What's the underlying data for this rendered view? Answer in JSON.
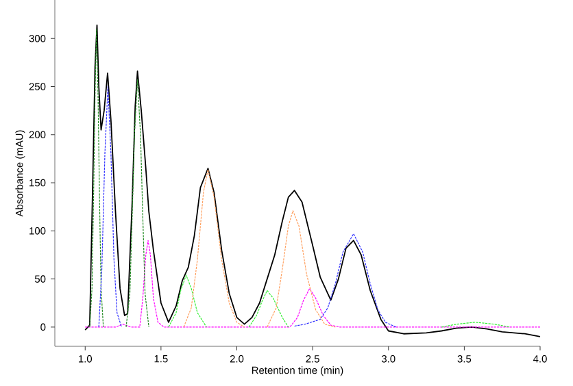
{
  "chart_data": {
    "type": "line",
    "xlabel": "Retention time (min)",
    "ylabel": "Absorbance (mAU)",
    "xlim": [
      0.8,
      4.0
    ],
    "ylim": [
      -20,
      340
    ],
    "xticks": [
      {
        "value": 1,
        "label": "1.0"
      },
      {
        "value": 1.5,
        "label": "1.5"
      },
      {
        "value": 2,
        "label": "2.0"
      },
      {
        "value": 2.5,
        "label": "2.5"
      },
      {
        "value": 3,
        "label": "3.0"
      },
      {
        "value": 3.5,
        "label": "3.5"
      },
      {
        "value": 4,
        "label": "4.0"
      }
    ],
    "yticks": [
      0,
      50,
      100,
      150,
      200,
      250,
      300
    ],
    "series": [
      {
        "color": "#000000",
        "line_style": "solid",
        "x": [
          1.0,
          1.03,
          1.05,
          1.065,
          1.078,
          1.09,
          1.105,
          1.125,
          1.148,
          1.17,
          1.2,
          1.23,
          1.26,
          1.28,
          1.31,
          1.33,
          1.345,
          1.37,
          1.4,
          1.42,
          1.45,
          1.5,
          1.55,
          1.6,
          1.64,
          1.68,
          1.72,
          1.76,
          1.81,
          1.85,
          1.9,
          1.95,
          2.0,
          2.05,
          2.1,
          2.15,
          2.2,
          2.25,
          2.3,
          2.34,
          2.38,
          2.43,
          2.5,
          2.55,
          2.62,
          2.67,
          2.72,
          2.77,
          2.82,
          2.88,
          2.95,
          3.0,
          3.1,
          3.25,
          3.35,
          3.45,
          3.55,
          3.65,
          3.75,
          3.9,
          4.0
        ],
        "values": [
          -3,
          2,
          150,
          270,
          314,
          250,
          205,
          225,
          264,
          215,
          120,
          40,
          12,
          14,
          130,
          230,
          266,
          225,
          165,
          120,
          80,
          25,
          5,
          22,
          48,
          62,
          95,
          145,
          165,
          140,
          80,
          35,
          10,
          3,
          10,
          25,
          50,
          75,
          110,
          135,
          142,
          130,
          85,
          52,
          28,
          50,
          82,
          90,
          75,
          38,
          8,
          -4,
          -7,
          -6,
          -4,
          -1,
          0,
          -2,
          -5,
          -7,
          -10
        ]
      },
      {
        "color": "#ff00ff",
        "line_style": "dashed",
        "x": [
          1.0,
          1.2,
          1.25,
          1.3,
          1.36,
          1.38,
          1.4,
          1.415,
          1.43,
          1.45,
          1.48,
          1.52,
          2.35,
          2.4,
          2.44,
          2.48,
          2.52,
          2.57,
          2.62,
          2.68,
          4.0
        ],
        "values": [
          0,
          0,
          3,
          0,
          0,
          30,
          75,
          90,
          75,
          30,
          5,
          0,
          0,
          10,
          28,
          40,
          30,
          12,
          2,
          0,
          0
        ]
      },
      {
        "color": "#228b22",
        "line_style": "dashed",
        "x": [
          1.03,
          1.045,
          1.055,
          1.065,
          1.075,
          1.085,
          1.095,
          1.105,
          1.12,
          1.2,
          1.27,
          1.295,
          1.31,
          1.325,
          1.345,
          1.365,
          1.38,
          1.395,
          1.42
        ],
        "values": [
          0,
          40,
          130,
          240,
          310,
          240,
          130,
          40,
          0,
          null,
          0,
          35,
          115,
          200,
          257,
          200,
          115,
          35,
          0
        ]
      },
      {
        "color": "#3030ff",
        "line_style": "dashed",
        "x": [
          1.09,
          1.11,
          1.13,
          1.15,
          1.17,
          1.19,
          1.21,
          1.24,
          2.3,
          2.38,
          2.45,
          2.55,
          2.6,
          2.65,
          2.7,
          2.77,
          2.83,
          2.88,
          2.93,
          2.98,
          3.05
        ],
        "values": [
          0,
          60,
          180,
          250,
          180,
          70,
          15,
          0,
          null,
          1,
          3,
          8,
          20,
          45,
          78,
          97,
          78,
          45,
          18,
          5,
          0
        ]
      },
      {
        "color": "#33ee33",
        "line_style": "dashed",
        "x": [
          1.55,
          1.6,
          1.63,
          1.666,
          1.7,
          1.74,
          1.8,
          1.9,
          2.08,
          2.13,
          2.17,
          2.2,
          2.24,
          2.3,
          2.34,
          3.0,
          3.35,
          3.45,
          3.57,
          3.7,
          3.8
        ],
        "values": [
          0,
          15,
          38,
          54,
          40,
          15,
          0,
          null,
          0,
          12,
          28,
          38,
          30,
          10,
          0,
          null,
          0,
          3,
          5,
          3,
          0
        ]
      },
      {
        "color": "#ffa060",
        "line_style": "dashed",
        "x": [
          1.65,
          1.7,
          1.74,
          1.78,
          1.81,
          1.85,
          1.9,
          1.95,
          2.0,
          2.05,
          2.1,
          2.2,
          2.26,
          2.3,
          2.34,
          2.37,
          2.41,
          2.46,
          2.52,
          2.58,
          2.65
        ],
        "values": [
          0,
          20,
          70,
          140,
          164,
          135,
          70,
          25,
          5,
          0,
          null,
          0,
          20,
          60,
          105,
          121,
          105,
          55,
          18,
          3,
          0
        ]
      }
    ]
  }
}
